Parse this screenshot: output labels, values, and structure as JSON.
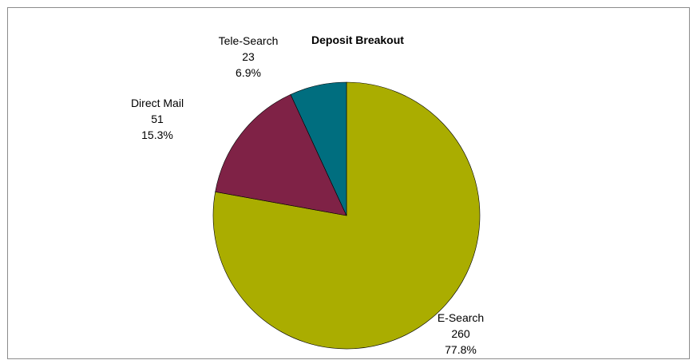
{
  "chart_data": {
    "type": "pie",
    "title": "Deposit Breakout",
    "slices": [
      {
        "label": "E-Search",
        "value": 260,
        "percent": "77.8%",
        "color": "#aaad00"
      },
      {
        "label": "Direct Mail",
        "value": 51,
        "percent": "15.3%",
        "color": "#7f2246"
      },
      {
        "label": "Tele-Search",
        "value": 23,
        "percent": "6.9%",
        "color": "#006e7f"
      }
    ]
  }
}
